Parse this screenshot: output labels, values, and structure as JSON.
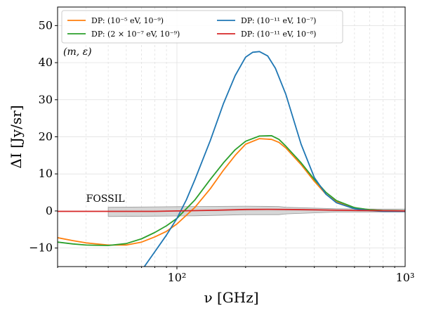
{
  "chart_data": {
    "type": "line",
    "xlabel": "ν [GHz]",
    "ylabel": "ΔI [Jy/sr]",
    "xscale": "log",
    "xlim": [
      30,
      1000
    ],
    "ylim": [
      -15,
      55
    ],
    "yticks": [
      -10,
      0,
      10,
      20,
      30,
      40,
      50
    ],
    "ytick_labels": [
      "−10",
      "0",
      "10",
      "20",
      "30",
      "40",
      "50"
    ],
    "xticks": [
      100,
      1000
    ],
    "xtick_labels": [
      "10²",
      "10³"
    ],
    "grid": true,
    "legend_placement": "top-left",
    "annotation": "(m, ε)",
    "band": {
      "label": "FOSSIL",
      "color": "#bbbbbb",
      "x": [
        50,
        80,
        120,
        200,
        280,
        300,
        500,
        800,
        1000
      ],
      "upper": [
        1.0,
        1.1,
        1.2,
        1.3,
        1.2,
        1.0,
        0.6,
        0.5,
        0.5
      ],
      "lower": [
        -1.5,
        -1.4,
        -1.3,
        -1.0,
        -1.0,
        -0.8,
        -0.3,
        -0.3,
        -0.3
      ]
    },
    "series": [
      {
        "name": "DP: (10⁻⁵ eV, 10⁻⁹)",
        "color": "#ff7f0e",
        "x": [
          30,
          35,
          40,
          50,
          60,
          70,
          80,
          90,
          100,
          120,
          140,
          160,
          180,
          200,
          230,
          260,
          280,
          300,
          350,
          400,
          450,
          500,
          600,
          700,
          800,
          1000
        ],
        "y": [
          -7.2,
          -8.0,
          -8.6,
          -9.2,
          -9.2,
          -8.4,
          -7.0,
          -5.5,
          -3.5,
          1.0,
          6.0,
          11.0,
          15.0,
          18.0,
          19.5,
          19.3,
          18.5,
          17.0,
          12.5,
          8.0,
          4.5,
          2.5,
          0.8,
          0.3,
          0.1,
          0.0
        ]
      },
      {
        "name": "DP: (2 × 10⁻⁷ eV, 10⁻⁹)",
        "color": "#2ca02c",
        "x": [
          30,
          35,
          40,
          50,
          60,
          70,
          80,
          90,
          100,
          120,
          140,
          160,
          180,
          200,
          230,
          260,
          280,
          300,
          350,
          400,
          450,
          500,
          600,
          700,
          800,
          1000
        ],
        "y": [
          -8.4,
          -8.9,
          -9.2,
          -9.3,
          -8.8,
          -7.5,
          -5.8,
          -4.0,
          -2.0,
          3.0,
          8.5,
          13.0,
          16.5,
          18.8,
          20.2,
          20.3,
          19.3,
          17.5,
          13.0,
          8.5,
          5.0,
          2.8,
          0.9,
          0.3,
          0.1,
          0.0
        ]
      },
      {
        "name": "DP: (10⁻¹¹ eV, 10⁻⁷)",
        "color": "#1f77b4",
        "x": [
          72,
          80,
          90,
          100,
          110,
          120,
          140,
          160,
          180,
          200,
          215,
          230,
          250,
          270,
          300,
          350,
          400,
          450,
          500,
          600,
          700,
          800,
          900,
          1000
        ],
        "y": [
          -15.0,
          -11.0,
          -6.5,
          -2.0,
          3.0,
          8.5,
          19.0,
          29.0,
          36.5,
          41.5,
          42.8,
          43.0,
          41.8,
          38.5,
          31.5,
          18.0,
          9.0,
          4.5,
          2.2,
          0.6,
          0.1,
          -0.1,
          -0.1,
          -0.1
        ]
      },
      {
        "name": "DP: (10⁻¹¹ eV, 10⁻⁸)",
        "color": "#d62728",
        "x": [
          30,
          50,
          80,
          100,
          150,
          200,
          250,
          300,
          400,
          500,
          700,
          1000
        ],
        "y": [
          -0.1,
          -0.1,
          -0.1,
          0.0,
          0.2,
          0.4,
          0.45,
          0.4,
          0.3,
          0.2,
          0.1,
          0.0
        ]
      }
    ]
  }
}
